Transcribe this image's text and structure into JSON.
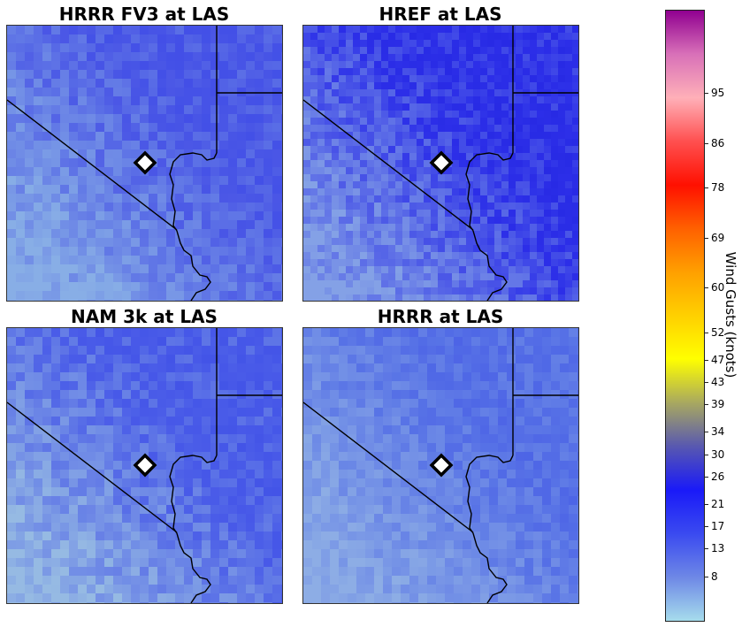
{
  "panels": [
    {
      "title": "HRRR FV3 at LAS",
      "base": "#4a57e6",
      "dark": "#2f3dea",
      "light": "#8fb8e6"
    },
    {
      "title": "HREF at LAS",
      "base": "#2c2fe8",
      "dark": "#1e1fd9",
      "light": "#8eaee6"
    },
    {
      "title": "NAM 3k at LAS",
      "base": "#4a5ce8",
      "dark": "#3440e6",
      "light": "#9ec4e2"
    },
    {
      "title": "HRRR at LAS",
      "base": "#5670e6",
      "dark": "#3a48e2",
      "light": "#94b4e4"
    }
  ],
  "colorbar": {
    "label": "Wind Gusts (knots)",
    "ticks": [
      "8",
      "13",
      "17",
      "21",
      "26",
      "30",
      "34",
      "39",
      "43",
      "47",
      "52",
      "60",
      "69",
      "78",
      "86",
      "95"
    ],
    "colors": [
      "#a6dcec",
      "#6e88e6",
      "#3a4af0",
      "#1a1af8",
      "#5858b0",
      "#a8a860",
      "#ffff00",
      "#ffd000",
      "#ffa000",
      "#ff6000",
      "#ff1000",
      "#ff5050",
      "#ffb0b8",
      "#d870b8",
      "#900090"
    ]
  },
  "station": "LAS"
}
